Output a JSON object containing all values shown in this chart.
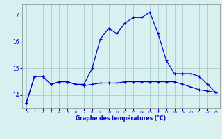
{
  "hours": [
    0,
    1,
    2,
    3,
    4,
    5,
    6,
    7,
    8,
    9,
    10,
    11,
    12,
    13,
    14,
    15,
    16,
    17,
    18,
    19,
    20,
    21,
    22,
    23
  ],
  "line1": [
    13.7,
    14.7,
    14.7,
    14.4,
    14.5,
    14.5,
    14.4,
    14.4,
    15.0,
    16.1,
    16.5,
    16.3,
    16.7,
    16.9,
    16.9,
    17.1,
    16.3,
    15.3,
    14.8,
    14.8,
    14.8,
    14.7,
    14.4,
    14.1
  ],
  "line2": [
    13.7,
    14.7,
    14.7,
    14.4,
    14.5,
    14.5,
    14.4,
    14.35,
    14.4,
    14.45,
    14.45,
    14.45,
    14.5,
    14.5,
    14.5,
    14.5,
    14.5,
    14.5,
    14.5,
    14.4,
    14.3,
    14.2,
    14.15,
    14.1
  ],
  "line_color": "#0000cc",
  "bg_color": "#d8f0f0",
  "grid_color": "#aacccc",
  "axis_color": "#0000cc",
  "ylabel_ticks": [
    14,
    15,
    16,
    17
  ],
  "xlabel_ticks": [
    0,
    1,
    2,
    3,
    4,
    5,
    6,
    7,
    8,
    9,
    10,
    11,
    12,
    13,
    14,
    15,
    16,
    17,
    18,
    19,
    20,
    21,
    22,
    23
  ],
  "xlabel": "Graphe des températures (°C)",
  "ylim": [
    13.5,
    17.4
  ],
  "xlim": [
    -0.5,
    23.5
  ]
}
